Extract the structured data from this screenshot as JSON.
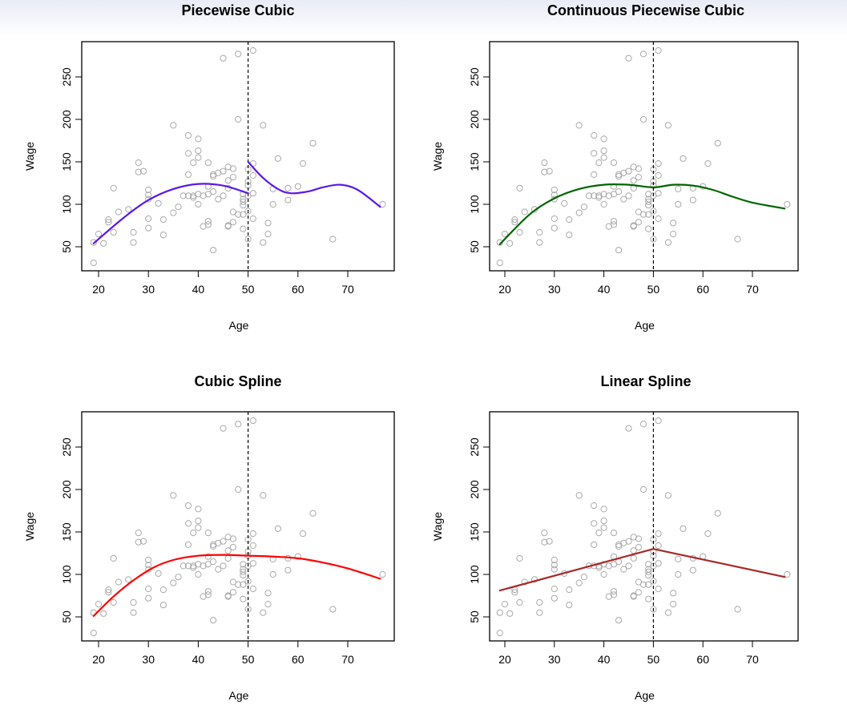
{
  "chart_data": {
    "type": "scatter",
    "layout": "2x2 grid",
    "xlabel": "Age",
    "ylabel": "Wage",
    "xlim": [
      17.5,
      79
    ],
    "ylim": [
      20,
      290
    ],
    "xticks": [
      20,
      30,
      40,
      50,
      60,
      70
    ],
    "yticks": [
      50,
      100,
      150,
      200,
      250
    ],
    "knot": 50,
    "point_color": "#a9a9a9",
    "points": [
      [
        19,
        31
      ],
      [
        19,
        55
      ],
      [
        20,
        65
      ],
      [
        21,
        54
      ],
      [
        22,
        82
      ],
      [
        22,
        79
      ],
      [
        23,
        119
      ],
      [
        23,
        67
      ],
      [
        24,
        91
      ],
      [
        26,
        94
      ],
      [
        27,
        67
      ],
      [
        27,
        55
      ],
      [
        28,
        149
      ],
      [
        28,
        138
      ],
      [
        29,
        139
      ],
      [
        30,
        117
      ],
      [
        30,
        111
      ],
      [
        30,
        106
      ],
      [
        30,
        83
      ],
      [
        30,
        72
      ],
      [
        32,
        101
      ],
      [
        33,
        82
      ],
      [
        33,
        64
      ],
      [
        35,
        193
      ],
      [
        35,
        90
      ],
      [
        36,
        97
      ],
      [
        37,
        110
      ],
      [
        38,
        181
      ],
      [
        38,
        160
      ],
      [
        38,
        135
      ],
      [
        38,
        110
      ],
      [
        39,
        149
      ],
      [
        39,
        110
      ],
      [
        39,
        108
      ],
      [
        40,
        177
      ],
      [
        40,
        163
      ],
      [
        40,
        155
      ],
      [
        40,
        112
      ],
      [
        40,
        100
      ],
      [
        41,
        110
      ],
      [
        41,
        74
      ],
      [
        42,
        149
      ],
      [
        42,
        121
      ],
      [
        42,
        112
      ],
      [
        42,
        80
      ],
      [
        42,
        76
      ],
      [
        43,
        135
      ],
      [
        43,
        133
      ],
      [
        43,
        115
      ],
      [
        43,
        46
      ],
      [
        44,
        137
      ],
      [
        44,
        106
      ],
      [
        45,
        272
      ],
      [
        45,
        139
      ],
      [
        45,
        110
      ],
      [
        46,
        144
      ],
      [
        46,
        128
      ],
      [
        46,
        119
      ],
      [
        46,
        75
      ],
      [
        46,
        74
      ],
      [
        47,
        142
      ],
      [
        47,
        132
      ],
      [
        47,
        91
      ],
      [
        47,
        79
      ],
      [
        48,
        277
      ],
      [
        48,
        200
      ],
      [
        48,
        88
      ],
      [
        49,
        112
      ],
      [
        49,
        106
      ],
      [
        49,
        103
      ],
      [
        49,
        99
      ],
      [
        49,
        88
      ],
      [
        49,
        71
      ],
      [
        50,
        141
      ],
      [
        50,
        127
      ],
      [
        50,
        122
      ],
      [
        50,
        110
      ],
      [
        50,
        92
      ],
      [
        50,
        59
      ],
      [
        51,
        281
      ],
      [
        51,
        148
      ],
      [
        51,
        134
      ],
      [
        51,
        113
      ],
      [
        51,
        83
      ],
      [
        53,
        193
      ],
      [
        53,
        55
      ],
      [
        54,
        78
      ],
      [
        54,
        65
      ],
      [
        55,
        118
      ],
      [
        55,
        100
      ],
      [
        56,
        154
      ],
      [
        58,
        119
      ],
      [
        58,
        105
      ],
      [
        60,
        121
      ],
      [
        61,
        148
      ],
      [
        63,
        172
      ],
      [
        67,
        59
      ],
      [
        77,
        100
      ]
    ],
    "panels": [
      {
        "title": "Piecewise Cubic",
        "fit_color": "#5b18e6",
        "fit_type": "piecewise-cubic",
        "segments": [
          {
            "x": [
              19,
              25,
              30,
              35,
              40,
              45,
              50
            ],
            "y": [
              54,
              84,
              105,
              118,
              124,
              122,
              113
            ]
          },
          {
            "x": [
              50,
              53,
              56,
              58.5,
              62,
              65,
              68.5,
              72,
              76.5
            ],
            "y": [
              150,
              131,
              118,
              113,
              115,
              120,
              123,
              117,
              97
            ]
          }
        ]
      },
      {
        "title": "Continuous Piecewise Cubic",
        "fit_color": "#006400",
        "fit_type": "continuous-piecewise-cubic",
        "segments": [
          {
            "x": [
              19,
              25,
              30,
              35,
              40,
              45,
              50,
              54,
              58,
              62,
              66,
              70,
              76.5
            ],
            "y": [
              53,
              88,
              107,
              118,
              123,
              123,
              120,
              123,
              122,
              117,
              109,
              102,
              95
            ]
          }
        ]
      },
      {
        "title": "Cubic Spline",
        "fit_color": "#ff0000",
        "fit_type": "cubic-spline",
        "segments": [
          {
            "x": [
              19,
              23,
              27,
              31,
              35,
              40,
              45,
              50,
              55,
              60,
              65,
              70,
              76.5
            ],
            "y": [
              51,
              74,
              93,
              108,
              117,
              122,
              123,
              122,
              121,
              119,
              114,
              107,
              95
            ]
          }
        ]
      },
      {
        "title": "Linear Spline",
        "fit_color": "#a52a2a",
        "fit_type": "linear-spline",
        "segments": [
          {
            "x": [
              19,
              50,
              76.5
            ],
            "y": [
              81,
              130,
              97
            ]
          }
        ]
      }
    ]
  }
}
